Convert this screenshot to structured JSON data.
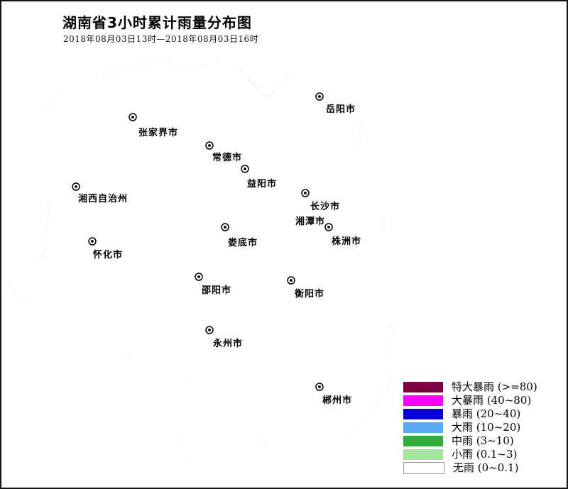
{
  "page": {
    "title": "湖南省3小时累计雨量分布图",
    "subtitle": "2018年08月03日13时—2018年08月03日16时"
  },
  "map": {
    "province_border_color": "#FA60D2",
    "district_line_color": "#828282"
  },
  "legend": {
    "items": [
      {
        "label": "特大暴雨 (>=80)",
        "color": "#7D0043"
      },
      {
        "label": "大暴雨 (40~80)",
        "color": "#F803F8"
      },
      {
        "label": "暴雨 (20~40)",
        "color": "#0800D8"
      },
      {
        "label": "大雨 (10~20)",
        "color": "#58A8F2"
      },
      {
        "label": "中雨 (3~10)",
        "color": "#33AC3E"
      },
      {
        "label": "小雨 (0.1~3)",
        "color": "#A5E79E"
      },
      {
        "label": "无雨 (0~0.1)",
        "color": "#FFFFFF",
        "border": "#999999"
      }
    ]
  },
  "cities": [
    {
      "name": "岳阳市",
      "marker": [
        448,
        134
      ],
      "label": [
        478,
        151
      ]
    },
    {
      "name": "张家界市",
      "marker": [
        185,
        163
      ],
      "label": [
        221,
        184
      ]
    },
    {
      "name": "常德市",
      "marker": [
        293,
        203
      ],
      "label": [
        318,
        219
      ]
    },
    {
      "name": "湘西自治州",
      "marker": [
        105,
        261
      ],
      "label": [
        143,
        277
      ]
    },
    {
      "name": "益阳市",
      "marker": [
        343,
        236
      ],
      "label": [
        367,
        256
      ]
    },
    {
      "name": "长沙市",
      "marker": [
        428,
        270
      ],
      "label": [
        456,
        288
      ]
    },
    {
      "name": "湘潭市",
      "marker": null,
      "label": [
        435,
        309
      ]
    },
    {
      "name": "株洲市",
      "marker": [
        461,
        318
      ],
      "label": [
        486,
        337
      ]
    },
    {
      "name": "娄底市",
      "marker": [
        315,
        318
      ],
      "label": [
        340,
        339
      ]
    },
    {
      "name": "怀化市",
      "marker": [
        128,
        338
      ],
      "label": [
        150,
        356
      ]
    },
    {
      "name": "邵阳市",
      "marker": [
        278,
        388
      ],
      "label": [
        303,
        406
      ]
    },
    {
      "name": "衡阳市",
      "marker": [
        408,
        393
      ],
      "label": [
        434,
        411
      ]
    },
    {
      "name": "永州市",
      "marker": [
        293,
        463
      ],
      "label": [
        319,
        481
      ]
    },
    {
      "name": "郴州市",
      "marker": [
        448,
        543
      ],
      "label": [
        473,
        561
      ]
    }
  ],
  "rain_levels": [
    {
      "label": "小雨 (0.1~3)",
      "color": "#A5E79E",
      "ellipses": [
        [
          95,
          150,
          42,
          26
        ],
        [
          150,
          200,
          88,
          58
        ],
        [
          215,
          112,
          78,
          36
        ],
        [
          310,
          118,
          80,
          36
        ],
        [
          395,
          130,
          55,
          32
        ],
        [
          385,
          170,
          35,
          30
        ],
        [
          448,
          165,
          72,
          58
        ],
        [
          490,
          185,
          30,
          40
        ],
        [
          300,
          152,
          45,
          22
        ],
        [
          160,
          250,
          38,
          22
        ],
        [
          95,
          320,
          78,
          72
        ],
        [
          48,
          390,
          42,
          40
        ],
        [
          205,
          318,
          78,
          42
        ],
        [
          280,
          300,
          68,
          42
        ],
        [
          347,
          278,
          42,
          42
        ],
        [
          310,
          345,
          58,
          32
        ],
        [
          255,
          372,
          52,
          32
        ],
        [
          348,
          388,
          52,
          38
        ],
        [
          420,
          268,
          42,
          32
        ],
        [
          468,
          298,
          35,
          45
        ],
        [
          505,
          215,
          18,
          14
        ],
        [
          516,
          255,
          16,
          12
        ],
        [
          530,
          330,
          22,
          35
        ],
        [
          440,
          395,
          58,
          42
        ],
        [
          483,
          462,
          68,
          68
        ],
        [
          505,
          555,
          52,
          62
        ],
        [
          450,
          545,
          58,
          48
        ],
        [
          420,
          612,
          70,
          42
        ],
        [
          332,
          588,
          42,
          38
        ],
        [
          292,
          542,
          42,
          28
        ],
        [
          228,
          628,
          42,
          26
        ],
        [
          300,
          638,
          38,
          32
        ],
        [
          372,
          498,
          28,
          22
        ],
        [
          90,
          465,
          35,
          20
        ],
        [
          180,
          458,
          35,
          17
        ],
        [
          143,
          365,
          30,
          22
        ],
        [
          455,
          98,
          22,
          12
        ],
        [
          400,
          222,
          28,
          16
        ],
        [
          545,
          480,
          18,
          25
        ],
        [
          65,
          350,
          25,
          20
        ],
        [
          40,
          412,
          25,
          15
        ],
        [
          477,
          245,
          20,
          15
        ],
        [
          506,
          300,
          12,
          10
        ]
      ]
    },
    {
      "label": "中雨 (3~10)",
      "color": "#33AC3E",
      "ellipses": [
        [
          165,
          120,
          32,
          18
        ],
        [
          230,
          112,
          45,
          20
        ],
        [
          300,
          108,
          45,
          20
        ],
        [
          360,
          128,
          38,
          22
        ],
        [
          390,
          160,
          22,
          18
        ],
        [
          420,
          148,
          38,
          28
        ],
        [
          437,
          185,
          32,
          32
        ],
        [
          450,
          225,
          35,
          32
        ],
        [
          480,
          180,
          18,
          22
        ],
        [
          112,
          192,
          36,
          30
        ],
        [
          152,
          186,
          16,
          20
        ],
        [
          170,
          177,
          20,
          13
        ],
        [
          85,
          330,
          46,
          40
        ],
        [
          206,
          305,
          38,
          26
        ],
        [
          250,
          330,
          32,
          22
        ],
        [
          305,
          328,
          26,
          18
        ],
        [
          350,
          285,
          24,
          30
        ],
        [
          348,
          250,
          16,
          14
        ],
        [
          243,
          276,
          32,
          26
        ],
        [
          285,
          390,
          28,
          25
        ],
        [
          352,
          390,
          30,
          25
        ],
        [
          440,
          390,
          40,
          30
        ],
        [
          468,
          440,
          33,
          28
        ],
        [
          500,
          470,
          42,
          52
        ],
        [
          505,
          445,
          30,
          25
        ],
        [
          488,
          515,
          35,
          25
        ],
        [
          540,
          460,
          12,
          25
        ],
        [
          524,
          545,
          28,
          38
        ],
        [
          455,
          545,
          42,
          32
        ],
        [
          495,
          565,
          28,
          22
        ],
        [
          420,
          628,
          32,
          18
        ],
        [
          268,
          592,
          20,
          16
        ],
        [
          370,
          141,
          18,
          11
        ],
        [
          98,
          202,
          18,
          20
        ],
        [
          324,
          256,
          14,
          9
        ],
        [
          210,
          590,
          13,
          11
        ],
        [
          395,
          625,
          18,
          13
        ],
        [
          462,
          388,
          16,
          20
        ],
        [
          165,
          488,
          21,
          17
        ],
        [
          440,
          578,
          11,
          9
        ],
        [
          205,
          334,
          14,
          11
        ],
        [
          263,
          310,
          13,
          11
        ],
        [
          168,
          301,
          13,
          10
        ],
        [
          438,
          336,
          12,
          9
        ],
        [
          351,
          311,
          11,
          12
        ],
        [
          318,
          183,
          11,
          8
        ],
        [
          468,
          525,
          8,
          7
        ]
      ]
    },
    {
      "label": "大雨 (10~20)",
      "color": "#58A8F2",
      "ellipses": [
        [
          157,
          108,
          17,
          9
        ],
        [
          255,
          105,
          25,
          11
        ],
        [
          295,
          105,
          18,
          10
        ],
        [
          340,
          125,
          24,
          14
        ],
        [
          360,
          143,
          15,
          10
        ],
        [
          385,
          156,
          15,
          11
        ],
        [
          408,
          168,
          9,
          7
        ],
        [
          388,
          125,
          11,
          9
        ],
        [
          218,
          123,
          8,
          5
        ],
        [
          435,
          135,
          15,
          11
        ],
        [
          427,
          99,
          10,
          6
        ],
        [
          458,
          182,
          11,
          8
        ],
        [
          418,
          155,
          13,
          19
        ],
        [
          433,
          190,
          12,
          15
        ],
        [
          446,
          214,
          9,
          11
        ],
        [
          464,
          239,
          15,
          12
        ],
        [
          428,
          244,
          10,
          8
        ],
        [
          150,
          185,
          12,
          16
        ],
        [
          98,
          203,
          13,
          16
        ],
        [
          243,
          275,
          21,
          16
        ],
        [
          350,
          284,
          19,
          17
        ],
        [
          348,
          250,
          9,
          11
        ],
        [
          351,
          311,
          8,
          9
        ],
        [
          168,
          301,
          9,
          7
        ],
        [
          204,
          308,
          10,
          8
        ],
        [
          205,
          334,
          9,
          7
        ],
        [
          263,
          310,
          8,
          7
        ],
        [
          352,
          392,
          15,
          12
        ],
        [
          461,
          388,
          11,
          15
        ],
        [
          470,
          441,
          13,
          11
        ],
        [
          510,
          429,
          13,
          10
        ],
        [
          497,
          443,
          9,
          8
        ],
        [
          536,
          465,
          12,
          17
        ],
        [
          515,
          487,
          10,
          11
        ],
        [
          483,
          467,
          8,
          9
        ],
        [
          470,
          501,
          9,
          9
        ],
        [
          528,
          532,
          17,
          21
        ],
        [
          393,
          618,
          13,
          12
        ],
        [
          262,
          594,
          6,
          5
        ],
        [
          172,
          493,
          5,
          4
        ],
        [
          442,
          577,
          5,
          4
        ],
        [
          40,
          390,
          13,
          10
        ],
        [
          63,
          352,
          11,
          8
        ],
        [
          318,
          183,
          8,
          6
        ],
        [
          438,
          336,
          10,
          8
        ],
        [
          282,
          392,
          10,
          8
        ],
        [
          506,
          300,
          7,
          6
        ],
        [
          472,
          256,
          8,
          7
        ]
      ]
    },
    {
      "label": "暴雨 (20~40)",
      "color": "#0800D8",
      "ellipses": [
        [
          157,
          107,
          10,
          5
        ],
        [
          256,
          103,
          12,
          7
        ],
        [
          291,
          104,
          12,
          7
        ],
        [
          348,
          119,
          12,
          8
        ],
        [
          330,
          127,
          7,
          6
        ],
        [
          325,
          135,
          5,
          4
        ],
        [
          360,
          142,
          7,
          5
        ],
        [
          385,
          155,
          10,
          7
        ],
        [
          427,
          99,
          6,
          4
        ],
        [
          435,
          134,
          9,
          6
        ],
        [
          456,
          157,
          13,
          9
        ],
        [
          460,
          170,
          10,
          12
        ],
        [
          437,
          199,
          11,
          6
        ],
        [
          464,
          239,
          11,
          8
        ],
        [
          445,
          241,
          7,
          6
        ],
        [
          472,
          256,
          5,
          5
        ],
        [
          429,
          244,
          6,
          5
        ],
        [
          151,
          186,
          7,
          10
        ],
        [
          99,
          204,
          7,
          9
        ],
        [
          243,
          274,
          13,
          10
        ],
        [
          350,
          284,
          13,
          11
        ],
        [
          348,
          250,
          5,
          7
        ],
        [
          351,
          311,
          5,
          6
        ],
        [
          168,
          301,
          5,
          4
        ],
        [
          204,
          308,
          6,
          5
        ],
        [
          205,
          334,
          5,
          4
        ],
        [
          263,
          310,
          4,
          4
        ],
        [
          353,
          392,
          10,
          8
        ],
        [
          460,
          388,
          8,
          12
        ],
        [
          470,
          440,
          10,
          8
        ],
        [
          510,
          429,
          10,
          8
        ],
        [
          497,
          443,
          6,
          5
        ],
        [
          536,
          462,
          8,
          12
        ],
        [
          532,
          473,
          7,
          8
        ],
        [
          483,
          467,
          5,
          6
        ],
        [
          515,
          487,
          7,
          8
        ],
        [
          528,
          492,
          6,
          6
        ],
        [
          470,
          501,
          6,
          6
        ],
        [
          528,
          532,
          13,
          17
        ],
        [
          392,
          615,
          9,
          10
        ],
        [
          438,
          336,
          6,
          4
        ],
        [
          41,
          390,
          7,
          5
        ],
        [
          282,
          392,
          6,
          5
        ]
      ]
    },
    {
      "label": "大暴雨 (40~80)",
      "color": "#F803F8",
      "ellipses": [
        [
          461,
          160,
          5,
          6
        ],
        [
          242,
          273,
          5,
          4
        ],
        [
          428,
          243,
          4,
          3
        ],
        [
          467,
          441,
          3,
          3
        ],
        [
          389,
          614,
          3,
          3
        ],
        [
          510,
          426,
          3,
          3
        ]
      ]
    },
    {
      "label": "特大暴雨 (>=80)",
      "color": "#7D0043",
      "ellipses": []
    }
  ]
}
